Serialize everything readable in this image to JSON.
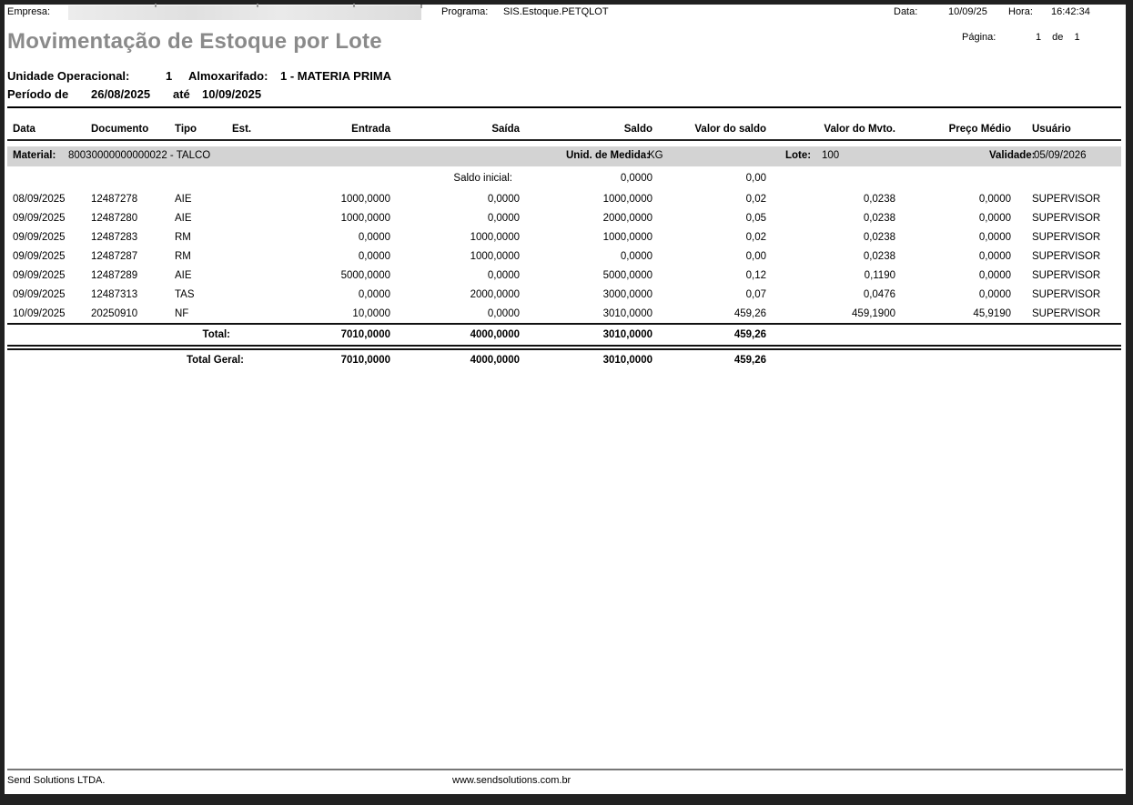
{
  "header": {
    "empresa_label": "Empresa:",
    "programa_label": "Programa:",
    "programa_value": "SIS.Estoque.PETQLOT",
    "data_label": "Data:",
    "data_value": "10/09/25",
    "hora_label": "Hora:",
    "hora_value": "16:42:34",
    "pagina_label": "Página:",
    "pagina_value": "1 de 1"
  },
  "title": "Movimentação de Estoque por Lote",
  "filters": {
    "unidade_operacional_label": "Unidade Operacional:",
    "unidade_operacional_value": "1",
    "almoxarifado_label": "Almoxarifado:",
    "almoxarifado_value": "1 - MATERIA PRIMA",
    "periodo_label": "Período de",
    "periodo_inicio": "26/08/2025",
    "ate_label": "até",
    "periodo_fim": "10/09/2025"
  },
  "table": {
    "headers": [
      "Data",
      "Documento",
      "Tipo",
      "Est.",
      "Entrada",
      "Saída",
      "Saldo",
      "Valor do saldo",
      "Valor do Mvto.",
      "Preço Médio",
      "Usuário"
    ],
    "material_band": {
      "material_label": "Material:",
      "material_value": "80030000000000022 - TALCO",
      "unidade_medida_label": "Unid. de Medida:",
      "unidade_medida_value": "KG",
      "lote_label": "Lote:",
      "lote_value": "100",
      "validade_label": "Validade:",
      "validade_value": "05/09/2026"
    },
    "saldo_inicial": {
      "label": "Saldo inicial:",
      "saldo": "0,0000",
      "valor_do_saldo": "0,00"
    },
    "rows": [
      [
        "08/09/2025",
        "12487278",
        "AIE",
        "",
        "1000,0000",
        "0,0000",
        "1000,0000",
        "0,02",
        "0,0238",
        "0,0000",
        "SUPERVISOR"
      ],
      [
        "09/09/2025",
        "12487280",
        "AIE",
        "",
        "1000,0000",
        "0,0000",
        "2000,0000",
        "0,05",
        "0,0238",
        "0,0000",
        "SUPERVISOR"
      ],
      [
        "09/09/2025",
        "12487283",
        "RM",
        "",
        "0,0000",
        "1000,0000",
        "1000,0000",
        "0,02",
        "0,0238",
        "0,0000",
        "SUPERVISOR"
      ],
      [
        "09/09/2025",
        "12487287",
        "RM",
        "",
        "0,0000",
        "1000,0000",
        "0,0000",
        "0,00",
        "0,0238",
        "0,0000",
        "SUPERVISOR"
      ],
      [
        "09/09/2025",
        "12487289",
        "AIE",
        "",
        "5000,0000",
        "0,0000",
        "5000,0000",
        "0,12",
        "0,1190",
        "0,0000",
        "SUPERVISOR"
      ],
      [
        "09/09/2025",
        "12487313",
        "TAS",
        "",
        "0,0000",
        "2000,0000",
        "3000,0000",
        "0,07",
        "0,0476",
        "0,0000",
        "SUPERVISOR"
      ],
      [
        "10/09/2025",
        "20250910",
        "NF",
        "",
        "10,0000",
        "0,0000",
        "3010,0000",
        "459,26",
        "459,1900",
        "45,9190",
        "SUPERVISOR"
      ]
    ],
    "total": {
      "label": "Total:",
      "entrada": "7010,0000",
      "saida": "4000,0000",
      "saldo": "3010,0000",
      "valor_do_saldo": "459,26"
    },
    "total_geral": {
      "label": "Total Geral:",
      "entrada": "7010,0000",
      "saida": "4000,0000",
      "saldo": "3010,0000",
      "valor_do_saldo": "459,26"
    }
  },
  "footer": {
    "company": "Send Solutions LTDA.",
    "website": "www.sendsolutions.com.br"
  }
}
